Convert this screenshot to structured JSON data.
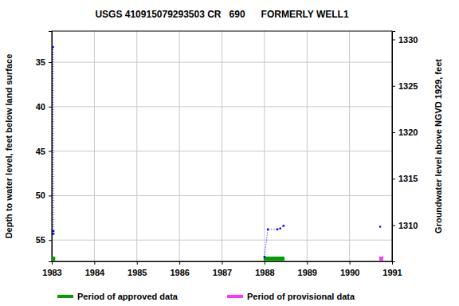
{
  "chart_data": {
    "type": "scatter",
    "title": "USGS 410915079293503 CR   690      FORMERLY WELL1",
    "y_label": "Depth to water level, feet below land surface",
    "y2_label": "Groundwater level above NGVD 1929, feet",
    "x": [
      1983.03,
      1983.04,
      1983.04,
      null,
      1988.0,
      1988.08,
      1988.3,
      1988.37,
      1988.45,
      null,
      1990.72
    ],
    "values": [
      33.3,
      54.0,
      54.3,
      null,
      56.9,
      53.8,
      53.8,
      53.7,
      53.4,
      null,
      53.5
    ],
    "color": "#0000ff",
    "marker": "dot",
    "line_style": "dotted",
    "xlim": [
      1983,
      1991
    ],
    "xticks": [
      1983,
      1984,
      1985,
      1986,
      1987,
      1988,
      1989,
      1990,
      1991
    ],
    "ylim": [
      57.4,
      31.5
    ],
    "yticks": [
      35,
      40,
      45,
      50,
      55
    ],
    "y2lim": [
      1306.1,
      1330.9
    ],
    "y2ticks": [
      1310,
      1315,
      1320,
      1325,
      1330
    ],
    "grid": true,
    "legend": "bottom",
    "periods": [
      {
        "name": "Period of approved data",
        "color": "#00a000",
        "ranges": [
          [
            1983.0,
            1983.08
          ],
          [
            1987.98,
            1988.47
          ]
        ]
      },
      {
        "name": "Period of provisional data",
        "color": "#ff33ff",
        "ranges": [
          [
            1990.7,
            1990.79
          ]
        ]
      }
    ]
  }
}
